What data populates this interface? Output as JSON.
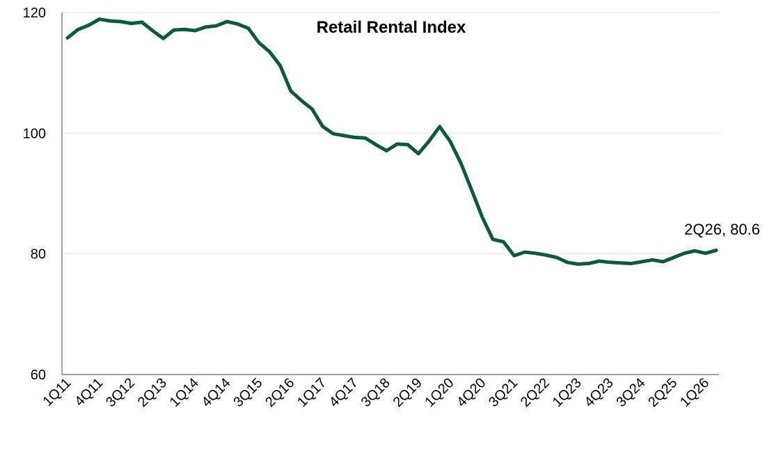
{
  "chart_data": {
    "type": "line",
    "title": "Retail Rental Index",
    "xlabel": "",
    "ylabel": "",
    "ylim": [
      60,
      120
    ],
    "yticks": [
      60,
      80,
      100,
      120
    ],
    "grid": true,
    "legend": "none",
    "line_color": "#0c5a3c",
    "x_tick_labels": [
      "1Q11",
      "4Q11",
      "3Q12",
      "2Q13",
      "1Q14",
      "4Q14",
      "3Q15",
      "2Q16",
      "1Q17",
      "4Q17",
      "3Q18",
      "2Q19",
      "1Q20",
      "4Q20",
      "3Q21",
      "2Q22",
      "1Q23",
      "4Q23",
      "3Q24",
      "2Q25",
      "1Q26"
    ],
    "x": [
      "1Q11",
      "2Q11",
      "3Q11",
      "4Q11",
      "1Q12",
      "2Q12",
      "3Q12",
      "4Q12",
      "1Q13",
      "2Q13",
      "3Q13",
      "4Q13",
      "1Q14",
      "2Q14",
      "3Q14",
      "4Q14",
      "1Q15",
      "2Q15",
      "3Q15",
      "4Q15",
      "1Q16",
      "2Q16",
      "3Q16",
      "4Q16",
      "1Q17",
      "2Q17",
      "3Q17",
      "4Q17",
      "1Q18",
      "2Q18",
      "3Q18",
      "4Q18",
      "1Q19",
      "2Q19",
      "3Q19",
      "4Q19",
      "1Q20",
      "2Q20",
      "3Q20",
      "4Q20",
      "1Q21",
      "2Q21",
      "3Q21",
      "4Q21",
      "1Q22",
      "2Q22",
      "3Q22",
      "4Q22",
      "1Q23",
      "2Q23",
      "3Q23",
      "4Q23",
      "1Q24",
      "2Q24",
      "3Q24",
      "4Q24",
      "1Q25",
      "2Q25",
      "3Q25",
      "4Q25",
      "1Q26",
      "2Q26"
    ],
    "series": [
      {
        "values": [
          115.8,
          117.2,
          117.9,
          118.9,
          118.6,
          118.5,
          118.2,
          118.4,
          117.0,
          115.7,
          117.1,
          117.2,
          117.0,
          117.6,
          117.8,
          118.5,
          118.1,
          117.4,
          115.0,
          113.5,
          111.2,
          107.0,
          105.4,
          104.0,
          101.1,
          99.9,
          99.6,
          99.3,
          99.2,
          98.1,
          97.1,
          98.2,
          98.1,
          96.6,
          98.7,
          101.1,
          98.6,
          95.0,
          90.6,
          86.1,
          82.4,
          82.0,
          79.7,
          80.3,
          80.1,
          79.8,
          79.4,
          78.6,
          78.3,
          78.4,
          78.8,
          78.6,
          78.5,
          78.4,
          78.7,
          79.0,
          78.7,
          79.4,
          80.1,
          80.5,
          80.1,
          80.6
        ]
      }
    ],
    "annotation": {
      "text": "2Q26, 80.6",
      "x": "2Q26",
      "y": 80.6
    }
  }
}
